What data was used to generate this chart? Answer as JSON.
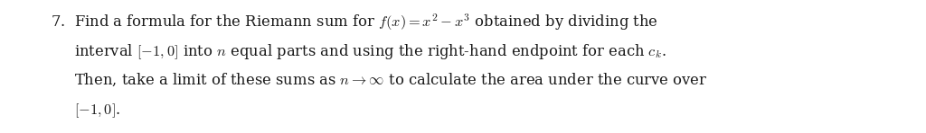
{
  "background_color": "#ffffff",
  "text_color": "#1a1a1a",
  "font_size": 11.8,
  "line1": "7.  Find a formula for the Riemann sum for $f(x) = x^2 - x^3$ obtained by dividing the",
  "line2": "     interval $[-1, 0]$ into $n$ equal parts and using the right-hand endpoint for each $c_k$.",
  "line3": "     Then, take a limit of these sums as $n \\to \\infty$ to calculate the area under the curve over",
  "line4": "     $[-1, 0]$.",
  "fig_width": 10.24,
  "fig_height": 1.48,
  "dpi": 100
}
